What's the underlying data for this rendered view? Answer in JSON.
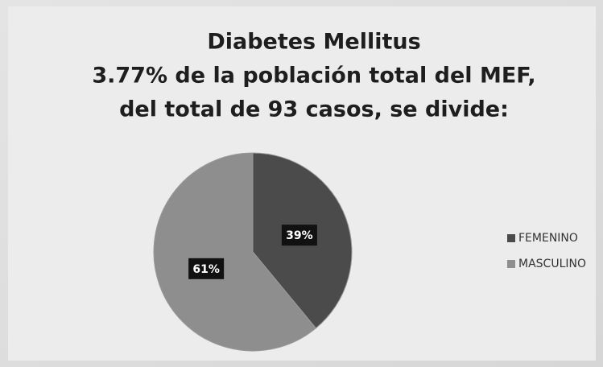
{
  "chart_data": {
    "type": "pie",
    "title": [
      "Diabetes Mellitus",
      "3.77% de la población total del MEF,",
      "del total de 93 casos, se divide:"
    ],
    "categories": [
      "FEMENINO",
      "MASCULINO"
    ],
    "values": [
      39,
      61
    ],
    "value_labels": [
      "39%",
      "61%"
    ],
    "colors": [
      "#4b4b4b",
      "#8e8e8e"
    ],
    "legend": "right"
  }
}
